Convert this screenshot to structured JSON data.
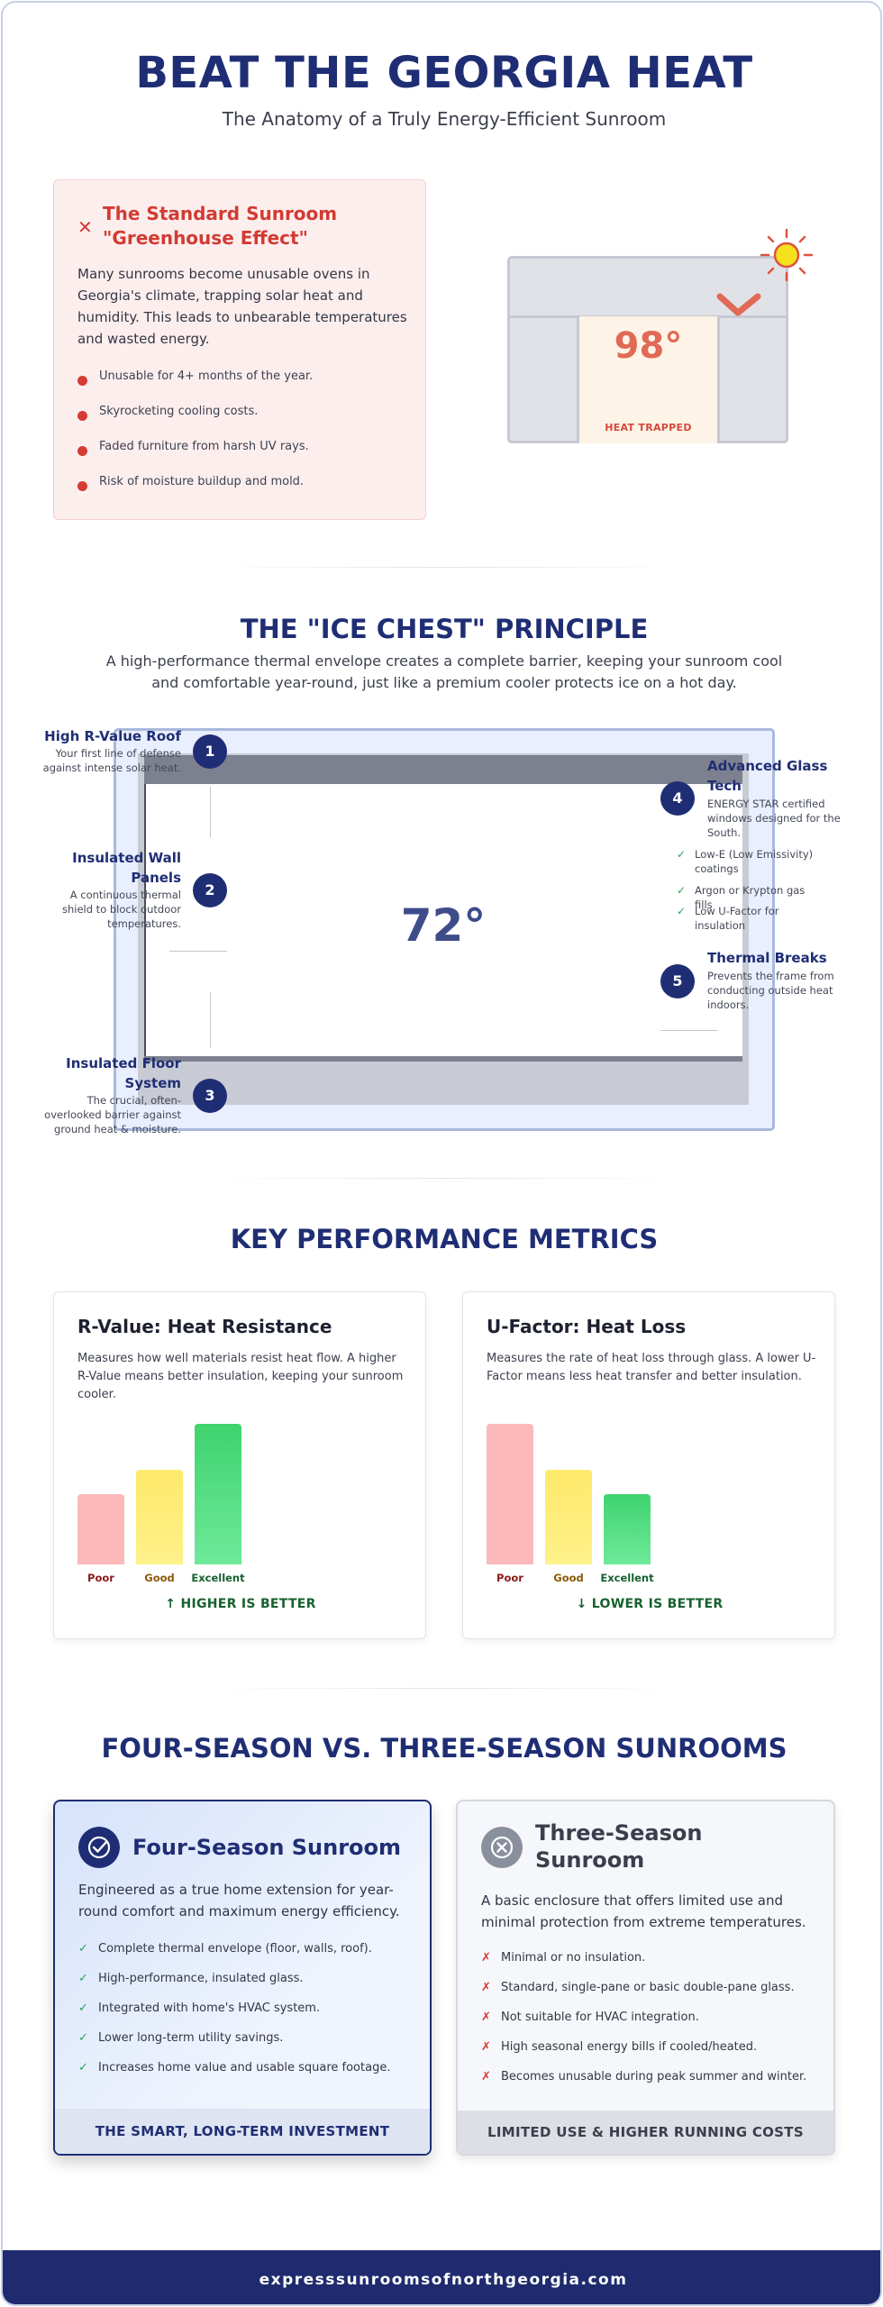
{
  "header": {
    "title": "BEAT THE GEORGIA HEAT",
    "subtitle": "The Anatomy of a Truly Energy-Efficient Sunroom"
  },
  "problem": {
    "icon": "x-icon",
    "title": "The Standard Sunroom \"Greenhouse Effect\"",
    "body": "Many sunrooms become unusable ovens in Georgia's climate, trapping solar heat and humidity. This leads to unbearable temperatures and wasted energy.",
    "bullets": [
      "Unusable for 4+ months of the year.",
      "Skyrocketing cooling costs.",
      "Faded furniture from harsh UV rays.",
      "Risk of moisture buildup and mold."
    ]
  },
  "greenhouse": {
    "temp": "98°",
    "label": "HEAT TRAPPED"
  },
  "ice_chest": {
    "title": "THE \"ICE CHEST\" PRINCIPLE",
    "description": "A high-performance thermal envelope creates a complete barrier, keeping your sunroom cool and comfortable year-round, just like a premium cooler protects ice on a hot day.",
    "room_temp": "72°",
    "labels": [
      {
        "num": "1",
        "title": "High R-Value Roof",
        "desc": "Your first line of defense against intense solar heat."
      },
      {
        "num": "2",
        "title": "Insulated Wall Panels",
        "desc": "A continuous thermal shield to block outdoor temperatures."
      },
      {
        "num": "3",
        "title": "Insulated Floor System",
        "desc": "The crucial, often-overlooked barrier against ground heat & moisture."
      },
      {
        "num": "4",
        "title": "Advanced Glass Tech",
        "desc": "ENERGY STAR certified windows designed for the South.",
        "checks": [
          "Low-E (Low Emissivity) coatings",
          "Argon or Krypton gas fills",
          "Low U-Factor for insulation"
        ]
      },
      {
        "num": "5",
        "title": "Thermal Breaks",
        "desc": "Prevents the frame from conducting outside heat indoors."
      }
    ]
  },
  "metrics": {
    "title": "KEY PERFORMANCE METRICS",
    "cards": [
      {
        "title": "R-Value: Heat Resistance",
        "desc": "Measures how well materials resist heat flow. A higher R-Value means better insulation, keeping your sunroom cooler.",
        "footer": "HIGHER IS BETTER",
        "direction": "up"
      },
      {
        "title": "U-Factor: Heat Loss",
        "desc": "Measures the rate of heat loss through glass. A lower U-Factor means less heat transfer and better insulation.",
        "footer": "LOWER IS BETTER",
        "direction": "down"
      }
    ]
  },
  "chart_data": [
    {
      "type": "bar",
      "categories": [
        "Poor",
        "Good",
        "Excellent"
      ],
      "values": [
        0.5,
        0.67,
        1.0
      ],
      "colors": [
        "#fbb9b9",
        "#fdee73",
        "#4ad978"
      ]
    },
    {
      "type": "bar",
      "categories": [
        "Poor",
        "Good",
        "Excellent"
      ],
      "values": [
        1.0,
        0.67,
        0.5
      ],
      "colors": [
        "#fbb9b9",
        "#fdee73",
        "#4ad978"
      ]
    }
  ],
  "seasons": {
    "title": "FOUR-SEASON VS. THREE-SEASON SUNROOMS",
    "four": {
      "icon": "check-circle-icon",
      "title": "Four-Season Sunroom",
      "desc": "Engineered as a true home extension for year-round comfort and maximum energy efficiency.",
      "items": [
        "Complete thermal envelope (floor, walls, roof).",
        "High-performance, insulated glass.",
        "Integrated with home's HVAC system.",
        "Lower long-term utility savings.",
        "Increases home value and usable square footage."
      ],
      "footer": "THE SMART, LONG-TERM INVESTMENT"
    },
    "three": {
      "icon": "x-circle-icon",
      "title": "Three-Season Sunroom",
      "desc": "A basic enclosure that offers limited use and minimal protection from extreme temperatures.",
      "items": [
        "Minimal or no insulation.",
        "Standard, single-pane or basic double-pane glass.",
        "Not suitable for HVAC integration.",
        "High seasonal energy bills if cooled/heated.",
        "Becomes unusable during peak summer and winter."
      ],
      "footer": "LIMITED USE & HIGHER RUNNING COSTS"
    }
  },
  "footer": {
    "url": "expresssunroomsofnorthgeorgia.com"
  },
  "colors": {
    "navy": "#1f2e74",
    "problem_red": "#d23b32",
    "check_green": "#27a35a"
  }
}
